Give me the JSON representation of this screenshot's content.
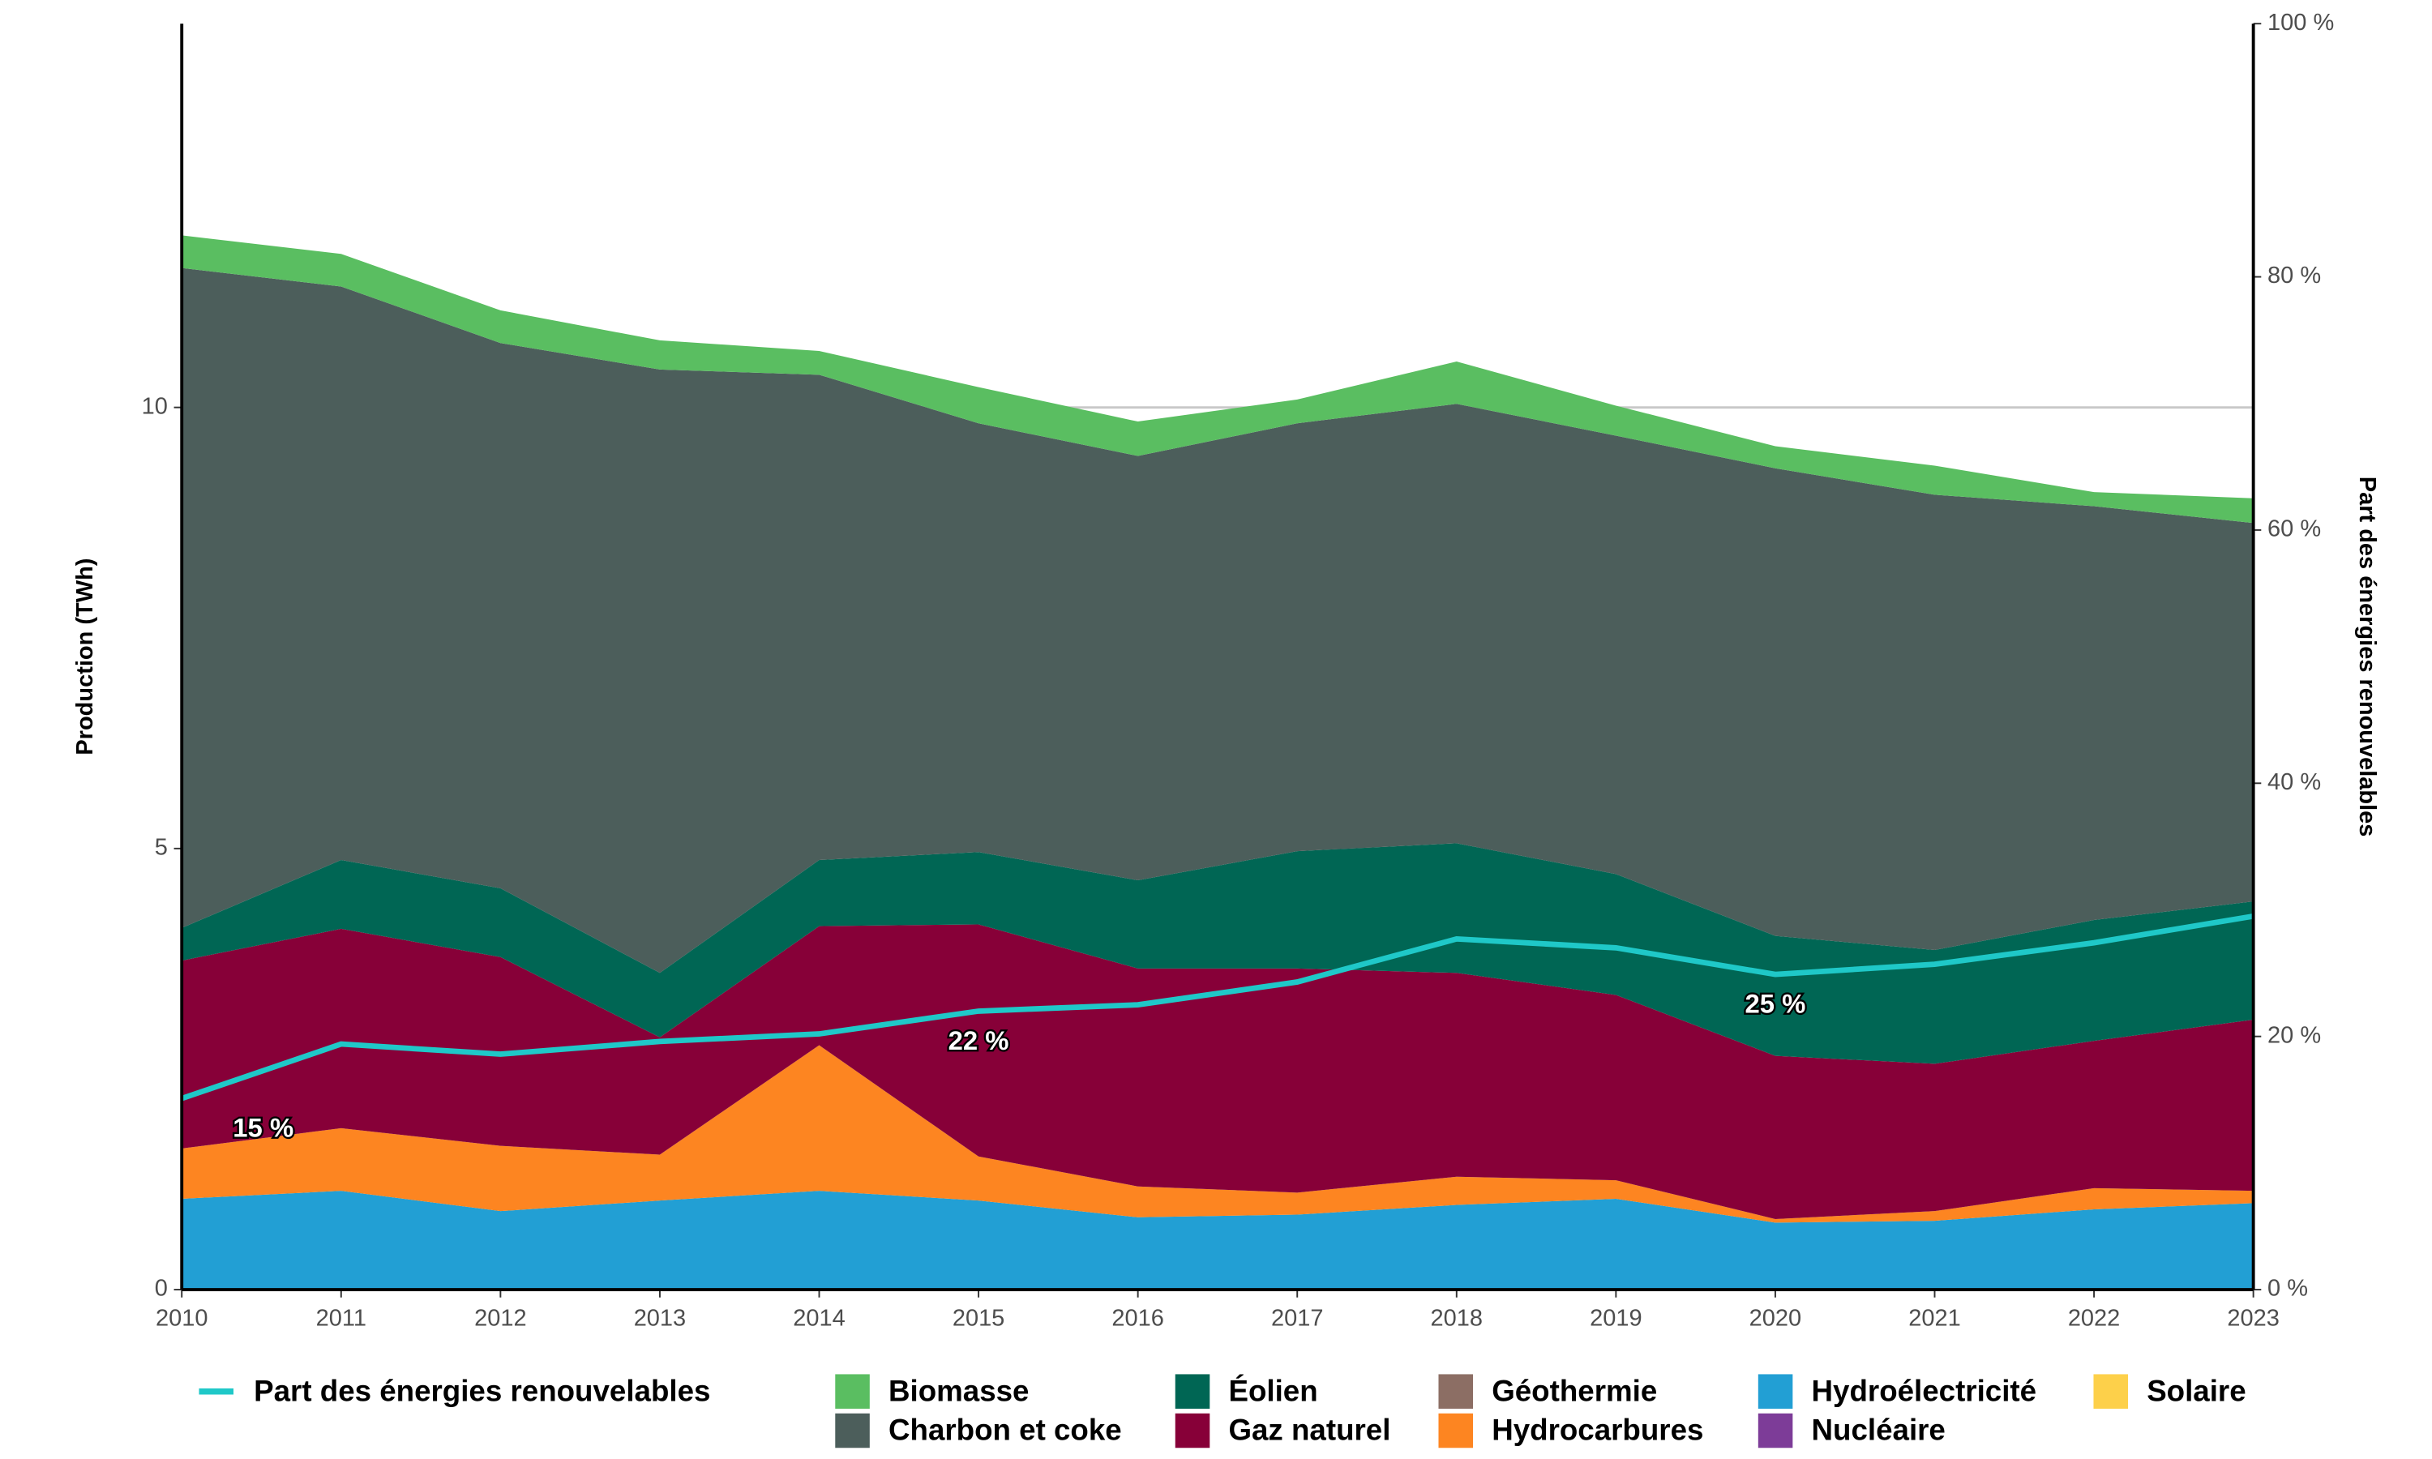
{
  "chart_data": {
    "type": "area",
    "stacked": true,
    "y_label": "Production (TWh)",
    "y2_label": "Part des énergies renouvelables",
    "x": [
      2010,
      2011,
      2012,
      2013,
      2014,
      2015,
      2016,
      2017,
      2018,
      2019,
      2020,
      2021,
      2022,
      2023
    ],
    "xlim": [
      2010,
      2023
    ],
    "xticks": [
      2010,
      2011,
      2012,
      2013,
      2014,
      2015,
      2016,
      2017,
      2018,
      2019,
      2020,
      2021,
      2022,
      2023
    ],
    "ylim": [
      0,
      14.35
    ],
    "yticks": [
      0,
      5,
      10
    ],
    "y2lim": [
      0,
      100
    ],
    "y2ticks": [
      {
        "value": 0,
        "label": "0 %"
      },
      {
        "value": 20,
        "label": "20 %"
      },
      {
        "value": 40,
        "label": "40 %"
      },
      {
        "value": 60,
        "label": "60 %"
      },
      {
        "value": 80,
        "label": "80 %"
      },
      {
        "value": 100,
        "label": "100 %"
      }
    ],
    "grid": true,
    "series": [
      {
        "name": "Hydroélectricité",
        "color": "#229fd4",
        "values": [
          1.03,
          1.12,
          0.89,
          1.01,
          1.12,
          1.01,
          0.82,
          0.85,
          0.96,
          1.03,
          0.76,
          0.78,
          0.91,
          0.98
        ]
      },
      {
        "name": "Hydrocarbures",
        "color": "#fd8521",
        "values": [
          0.57,
          0.71,
          0.74,
          0.52,
          1.65,
          0.5,
          0.35,
          0.25,
          0.32,
          0.21,
          0.04,
          0.11,
          0.24,
          0.14
        ]
      },
      {
        "name": "Gaz naturel",
        "color": "#870038",
        "values": [
          2.13,
          2.26,
          2.14,
          1.33,
          1.35,
          2.63,
          2.47,
          2.54,
          2.31,
          2.1,
          1.85,
          1.67,
          1.67,
          1.94
        ]
      },
      {
        "name": "Éolien",
        "color": "#006654",
        "values": [
          0.37,
          0.78,
          0.78,
          0.73,
          0.75,
          0.82,
          1.0,
          1.33,
          1.47,
          1.37,
          1.36,
          1.29,
          1.37,
          1.34
        ]
      },
      {
        "name": "Charbon et coke",
        "color": "#4c5e5b",
        "values": [
          7.48,
          6.5,
          6.18,
          6.84,
          5.5,
          4.86,
          4.81,
          4.85,
          4.98,
          4.97,
          5.3,
          5.16,
          4.69,
          4.29
        ]
      },
      {
        "name": "Biomasse",
        "color": "#5abe61",
        "values": [
          0.37,
          0.37,
          0.37,
          0.33,
          0.27,
          0.41,
          0.39,
          0.27,
          0.48,
          0.34,
          0.25,
          0.33,
          0.16,
          0.28
        ]
      },
      {
        "name": "Géothermie",
        "color": "#8c6e64",
        "values": [
          0,
          0,
          0,
          0,
          0,
          0,
          0,
          0,
          0,
          0,
          0,
          0,
          0,
          0
        ]
      },
      {
        "name": "Nucléaire",
        "color": "#7d3c98",
        "values": [
          0,
          0,
          0,
          0,
          0,
          0,
          0,
          0,
          0,
          0,
          0,
          0,
          0,
          0
        ]
      },
      {
        "name": "Solaire",
        "color": "#fdd04a",
        "values": [
          0,
          0,
          0,
          0,
          0,
          0,
          0,
          0,
          0,
          0,
          0,
          0,
          0,
          0
        ]
      },
      {
        "name": "Part des énergies renouvelables",
        "color": "#1fc8c8",
        "axis": "y2",
        "type": "line",
        "values": [
          15.1,
          19.4,
          18.6,
          19.6,
          20.2,
          22.0,
          22.5,
          24.3,
          27.7,
          27.0,
          24.9,
          25.7,
          27.4,
          29.5
        ],
        "value_labels": [
          "15 %",
          null,
          null,
          null,
          null,
          "22 %",
          null,
          null,
          null,
          null,
          "25 %",
          null,
          null,
          null
        ]
      }
    ]
  }
}
